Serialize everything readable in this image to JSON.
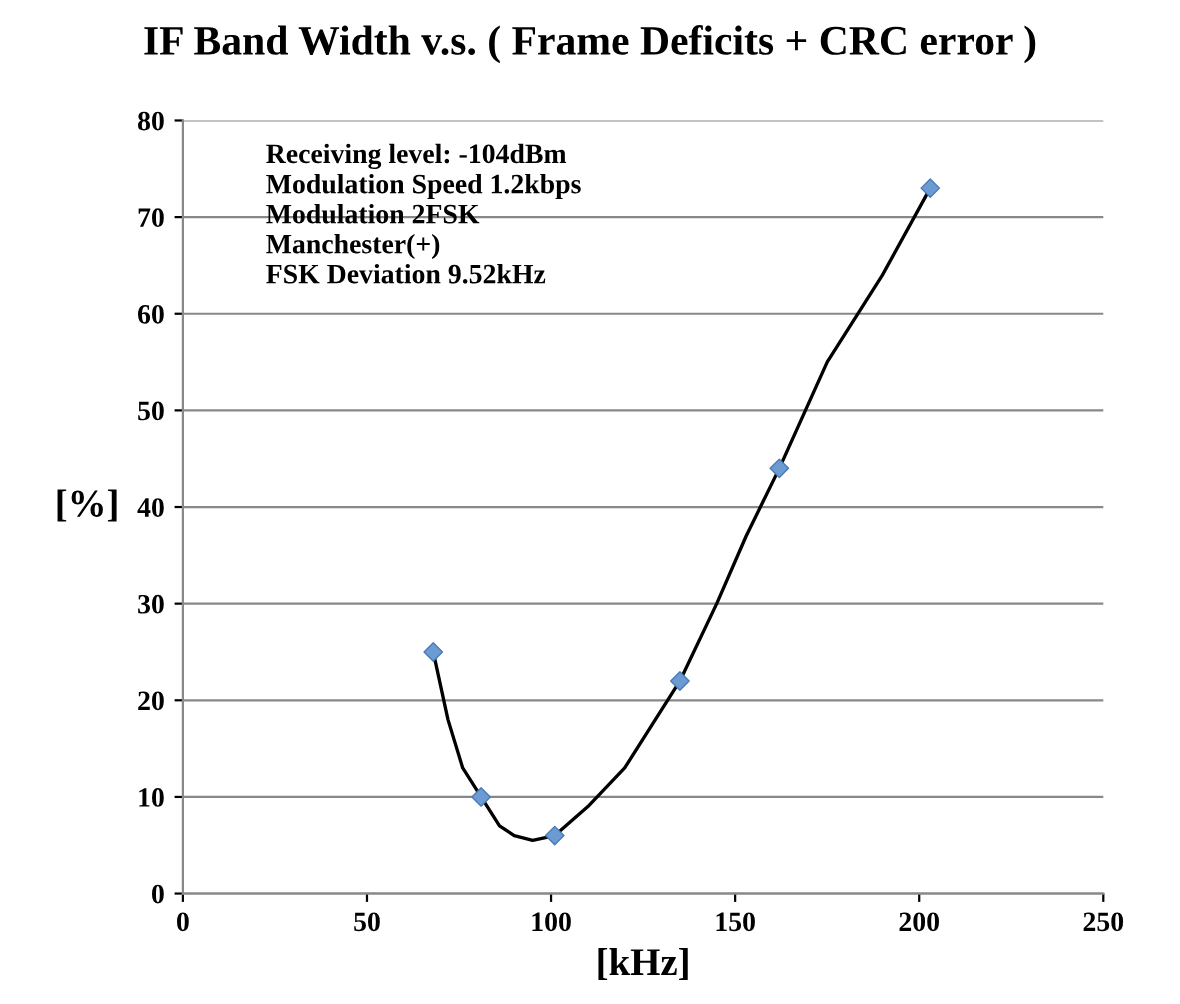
{
  "chart_data": {
    "type": "line",
    "title": "IF Band Width v.s. ( Frame Deficits + CRC error )",
    "xlabel": "[kHz]",
    "ylabel": "[%]",
    "x": [
      68,
      81,
      101,
      135,
      162,
      203
    ],
    "series": [
      {
        "color": "#000000",
        "marker": "none",
        "x": [
          68,
          72,
          76,
          81,
          86,
          90,
          95,
          101,
          110,
          120,
          135,
          145,
          153,
          162,
          175,
          190,
          203
        ],
        "values": [
          25,
          18,
          13,
          10,
          7,
          6,
          5.5,
          6,
          9,
          13,
          22,
          30,
          37,
          44,
          55,
          64,
          73
        ]
      },
      {
        "type": "scatter",
        "color": "#6b9bd2",
        "marker": "diamond",
        "values": [
          25,
          10,
          6,
          22,
          44,
          73
        ]
      }
    ],
    "xlim": [
      0,
      250
    ],
    "xticks": [
      0,
      50,
      100,
      150,
      200,
      250
    ],
    "ylim": [
      0,
      80
    ],
    "yticks": [
      0,
      10,
      20,
      30,
      40,
      50,
      60,
      70,
      80
    ],
    "grid": "y",
    "annotations": [
      "Receiving level: -104dBm\nModulation Speed 1.2kbps\nModulation 2FSK\nManchester(+)\nFSK Deviation 9.52kHz"
    ]
  }
}
